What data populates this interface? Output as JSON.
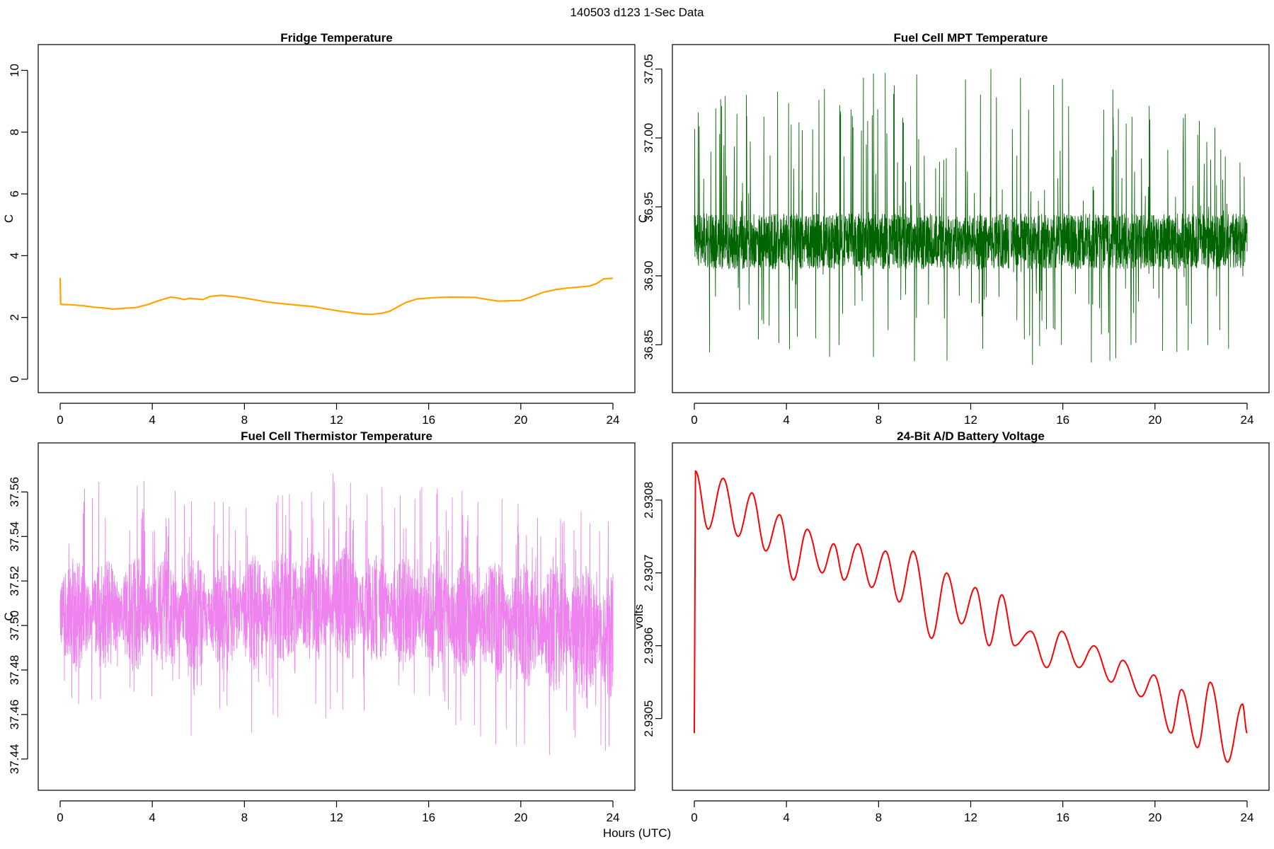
{
  "figure": {
    "title": "140503   d123   1-Sec Data",
    "xlabel": "Hours (UTC)"
  },
  "chart_data": [
    {
      "type": "line",
      "title": "Fridge Temperature",
      "ylabel": "C",
      "xlim": [
        0,
        24
      ],
      "ylim": [
        0,
        10.4
      ],
      "xticks": [
        "0",
        "4",
        "8",
        "12",
        "16",
        "20",
        "24"
      ],
      "yticks": [
        "0",
        "2",
        "4",
        "6",
        "8",
        "10"
      ],
      "color": "#FFA500",
      "style": "smooth",
      "x": [
        0,
        0.02,
        0.05,
        0.5,
        1,
        1.5,
        2,
        2.3,
        2.8,
        3.3,
        3.8,
        4.3,
        4.8,
        5.1,
        5.4,
        5.6,
        5.9,
        6.2,
        6.5,
        7,
        7.5,
        8,
        9,
        10,
        11,
        12,
        12.5,
        13,
        13.5,
        14,
        14.3,
        15,
        15.5,
        16,
        16.5,
        17,
        18,
        19,
        20,
        20.5,
        21,
        21.5,
        22,
        22.5,
        23,
        23.3,
        23.6,
        24
      ],
      "y": [
        3.28,
        2.45,
        2.42,
        2.41,
        2.38,
        2.33,
        2.3,
        2.27,
        2.3,
        2.32,
        2.42,
        2.55,
        2.66,
        2.63,
        2.58,
        2.62,
        2.6,
        2.58,
        2.68,
        2.72,
        2.68,
        2.63,
        2.5,
        2.42,
        2.35,
        2.22,
        2.17,
        2.12,
        2.1,
        2.14,
        2.2,
        2.48,
        2.6,
        2.63,
        2.65,
        2.66,
        2.65,
        2.53,
        2.55,
        2.68,
        2.82,
        2.9,
        2.95,
        2.98,
        3.02,
        3.1,
        3.25,
        3.27
      ]
    },
    {
      "type": "line",
      "title": "Fuel Cell MPT Temperature",
      "ylabel": "C",
      "xlim": [
        0,
        24
      ],
      "ylim": [
        36.825,
        37.058
      ],
      "xticks": [
        "0",
        "4",
        "8",
        "12",
        "16",
        "20",
        "24"
      ],
      "yticks": [
        "36.85",
        "36.90",
        "36.95",
        "37.00",
        "37.05"
      ],
      "color": "#006400",
      "style": "noise",
      "gap_at": 13.7,
      "x": [
        0,
        4,
        8,
        12,
        16,
        20,
        24
      ],
      "center": [
        36.925,
        36.925,
        36.925,
        36.925,
        36.925,
        36.925,
        36.925
      ],
      "amplitude": [
        0.02,
        0.02,
        0.02,
        0.02,
        0.02,
        0.02,
        0.02
      ],
      "y_min": [
        36.845,
        36.84,
        36.84,
        36.835,
        36.83,
        36.835,
        36.85
      ],
      "y_max": [
        37.04,
        37.05,
        37.05,
        37.05,
        37.052,
        37.03,
        37.0
      ]
    },
    {
      "type": "line",
      "title": "Fuel Cell Thermistor Temperature",
      "ylabel": "C",
      "xlim": [
        0,
        24
      ],
      "ylim": [
        37.432,
        37.576
      ],
      "xticks": [
        "0",
        "4",
        "8",
        "12",
        "16",
        "20",
        "24"
      ],
      "yticks": [
        "37.44",
        "37.46",
        "37.48",
        "37.50",
        "37.52",
        "37.54",
        "37.56"
      ],
      "color": "#EE82EE",
      "style": "noise",
      "gap_at": 13.8,
      "x": [
        0,
        4,
        8,
        12,
        16,
        20,
        24
      ],
      "center": [
        37.505,
        37.505,
        37.505,
        37.51,
        37.505,
        37.5,
        37.495
      ],
      "amplitude": [
        0.02,
        0.02,
        0.02,
        0.02,
        0.02,
        0.022,
        0.024
      ],
      "period_hours": 1.3,
      "y_min": [
        37.465,
        37.45,
        37.45,
        37.455,
        37.46,
        37.44,
        37.44
      ],
      "y_max": [
        37.573,
        37.565,
        37.56,
        37.57,
        37.565,
        37.555,
        37.55
      ]
    },
    {
      "type": "line",
      "title": "24-Bit A/D Battery Voltage",
      "ylabel": "volts",
      "xlim": [
        0,
        24
      ],
      "ylim": [
        2.93042,
        2.93086
      ],
      "xticks": [
        "0",
        "4",
        "8",
        "12",
        "16",
        "20",
        "24"
      ],
      "yticks": [
        "2.9305",
        "2.9306",
        "2.9307",
        "2.9308"
      ],
      "color": "#FF0000",
      "style": "oscillation",
      "x": [
        0,
        0.05,
        0.6,
        1.25,
        1.9,
        2.5,
        3.1,
        3.7,
        4.3,
        4.9,
        5.55,
        6.05,
        6.5,
        7.1,
        7.7,
        8.3,
        8.9,
        9.5,
        10.3,
        10.95,
        11.6,
        12.2,
        12.8,
        13.35,
        13.9,
        14.6,
        15.3,
        15.95,
        16.7,
        17.35,
        18.1,
        18.6,
        19.4,
        19.95,
        20.7,
        21.15,
        21.85,
        22.4,
        23.15,
        23.8,
        24
      ],
      "y": [
        2.93048,
        2.93084,
        2.93076,
        2.93083,
        2.93075,
        2.93081,
        2.93073,
        2.93078,
        2.93069,
        2.93076,
        2.9307,
        2.93074,
        2.93069,
        2.93074,
        2.93068,
        2.93073,
        2.93066,
        2.93073,
        2.93061,
        2.9307,
        2.93063,
        2.93068,
        2.9306,
        2.93067,
        2.9306,
        2.93062,
        2.93057,
        2.93062,
        2.93057,
        2.9306,
        2.93055,
        2.93058,
        2.93053,
        2.93056,
        2.93048,
        2.93054,
        2.93046,
        2.93055,
        2.93044,
        2.93052,
        2.93048
      ]
    }
  ]
}
